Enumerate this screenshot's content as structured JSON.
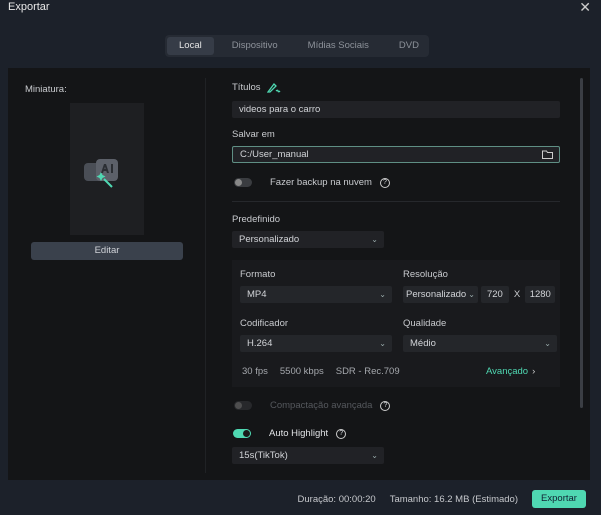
{
  "window": {
    "title": "Exportar",
    "close_icon": "close-icon"
  },
  "tabs": [
    {
      "label": "Local",
      "active": true
    },
    {
      "label": "Dispositivo"
    },
    {
      "label": "Mídias Sociais"
    },
    {
      "label": "DVD"
    }
  ],
  "thumbnail": {
    "label": "Miniatura:",
    "edit_label": "Editar",
    "icon": "ai-magic-icon"
  },
  "form": {
    "title_label": "Títulos",
    "title_value": "videos para o carro",
    "title_ai_icon": "ai-pen-icon",
    "save_label": "Salvar em",
    "save_value": "C:/User_manual",
    "folder_icon": "folder-icon",
    "backup_label": "Fazer backup na nuvem",
    "backup_on": false,
    "preset_label": "Predefinido",
    "preset_value": "Personalizado",
    "format_label": "Formato",
    "format_value": "MP4",
    "resolution_label": "Resolução",
    "resolution_value": "Personalizado",
    "width": "720",
    "x": "X",
    "height": "1280",
    "encoder_label": "Codificador",
    "encoder_value": "H.264",
    "quality_label": "Qualidade",
    "quality_value": "Médio",
    "fps": "30 fps",
    "bitrate": "5500 kbps",
    "color": "SDR - Rec.709",
    "advanced_label": "Avançado",
    "compress_label": "Compactação avançada",
    "compress_on": false,
    "highlight_label": "Auto Highlight",
    "highlight_on": true,
    "highlight_value": "15s(TikTok)"
  },
  "footer": {
    "duration": "Duração: 00:00:20",
    "size": "Tamanho: 16.2 MB (Estimado)",
    "export_label": "Exportar"
  },
  "colors": {
    "accent": "#4fd8b2"
  }
}
